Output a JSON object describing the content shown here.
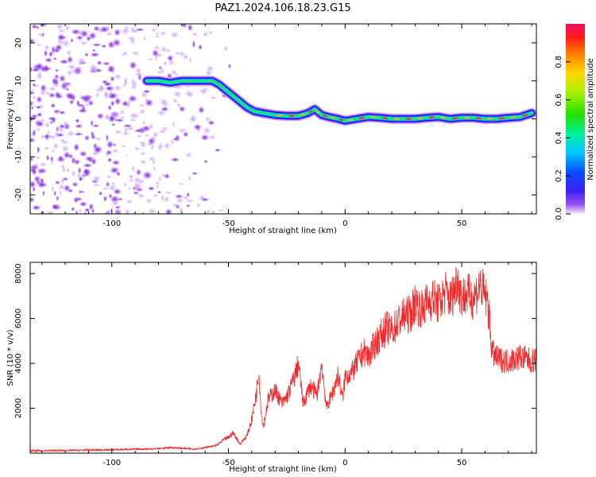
{
  "title": "PAZ1.2024.106.18.23.G15",
  "colors": {
    "snr_line": "#ee2a2a",
    "axis": "#000000",
    "background": "#ffffff"
  },
  "chart_data": [
    {
      "type": "heatmap",
      "xlabel": "Height of straight line (km)",
      "ylabel": "Frequency (Hz)",
      "xlim": [
        -135,
        82
      ],
      "ylim": [
        -25,
        25
      ],
      "xticks": [
        -100,
        -50,
        0,
        50
      ],
      "yticks": [
        -20,
        -10,
        0,
        10,
        20
      ],
      "ridge_x": [
        -85,
        -80,
        -75,
        -70,
        -65,
        -60,
        -57,
        -54,
        -51,
        -48,
        -45,
        -42,
        -39,
        -35,
        -30,
        -25,
        -20,
        -16,
        -13,
        -10,
        -7,
        -3,
        0,
        5,
        10,
        15,
        20,
        25,
        30,
        35,
        40,
        45,
        50,
        55,
        60,
        65,
        70,
        75,
        80
      ],
      "ridge_frequency": [
        10,
        10,
        9.5,
        10,
        10,
        10,
        10,
        9,
        7.5,
        6,
        4.5,
        3,
        2,
        1.5,
        1,
        0.8,
        0.8,
        1.5,
        2.5,
        1,
        0.5,
        0,
        -0.5,
        0,
        0.5,
        0.3,
        0,
        0,
        0,
        0.3,
        0.5,
        0,
        0.3,
        0.3,
        0,
        0,
        0.3,
        0.5,
        1.5
      ],
      "colorbar": {
        "label": "Normalized spectral amplitude",
        "range": [
          0,
          1
        ],
        "ticks": [
          0.0,
          0.2,
          0.4,
          0.6,
          0.8
        ]
      }
    },
    {
      "type": "line",
      "xlabel": "Height of straight line (km)",
      "ylabel": "SNR (10 * v/v)",
      "xlim": [
        -135,
        82
      ],
      "ylim": [
        0,
        8500
      ],
      "xticks": [
        -100,
        -50,
        0,
        50
      ],
      "yticks": [
        2000,
        4000,
        6000,
        8000
      ],
      "series": [
        {
          "x": [
            -135,
            -120,
            -100,
            -80,
            -75,
            -65,
            -60,
            -55,
            -52,
            -50,
            -48,
            -45,
            -42,
            -40,
            -38,
            -37,
            -36,
            -35,
            -33,
            -30,
            -27,
            -25,
            -22,
            -20,
            -18,
            -15,
            -12,
            -10,
            -8,
            -5,
            -3,
            -1,
            0,
            3,
            5,
            8,
            10,
            12,
            15,
            18,
            20,
            23,
            25,
            28,
            30,
            33,
            35,
            38,
            40,
            43,
            45,
            47,
            48,
            50,
            52,
            55,
            58,
            60,
            61,
            62,
            63,
            65,
            70,
            75,
            80,
            82
          ],
          "y": [
            100,
            120,
            150,
            200,
            250,
            180,
            250,
            350,
            600,
            700,
            900,
            400,
            800,
            1500,
            2700,
            3800,
            1800,
            1200,
            2400,
            2800,
            2200,
            2500,
            3300,
            4000,
            2200,
            3000,
            2600,
            4000,
            2000,
            2800,
            3500,
            2400,
            3400,
            3600,
            4000,
            4500,
            4300,
            4700,
            5200,
            5600,
            5400,
            5900,
            6100,
            6200,
            6700,
            6400,
            6700,
            6900,
            6600,
            7200,
            6800,
            7300,
            7800,
            6900,
            7100,
            6900,
            7500,
            7000,
            6800,
            5800,
            4500,
            4200,
            4100,
            4300,
            4100,
            4200
          ]
        }
      ]
    }
  ]
}
